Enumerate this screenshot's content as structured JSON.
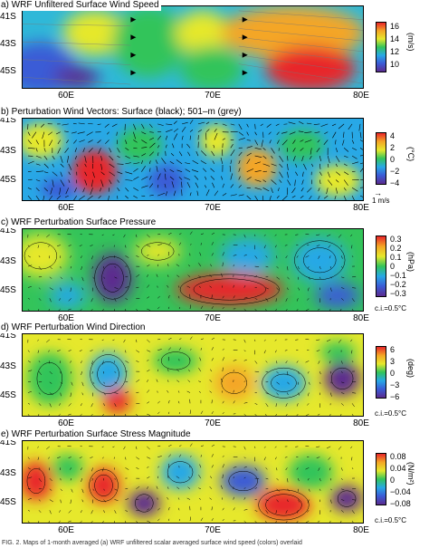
{
  "colormap": [
    "#5b2c8f",
    "#3b5bd6",
    "#28a8e6",
    "#33c45a",
    "#e6e82c",
    "#f4a625",
    "#e8262a"
  ],
  "panels": [
    {
      "title": "a) WRF Unfiltered Surface Wind Speed",
      "y_labels": [
        "41S",
        "43S",
        "45S"
      ],
      "x_labels": [
        "60E",
        "70E",
        "80E"
      ],
      "colorbar_ticks": [
        "16",
        "14",
        "12",
        "10"
      ],
      "unit": "(m/s)",
      "ci_label": ""
    },
    {
      "title": "b) Perturbation Wind Vectors: Surface (black); 501–m (grey)",
      "y_labels": [
        "41S",
        "43S",
        "45S"
      ],
      "x_labels": [
        "60E",
        "70E",
        "80E"
      ],
      "colorbar_ticks": [
        "4",
        "2",
        "0",
        "−2",
        "−4"
      ],
      "unit": "(°C)",
      "ci_label": "",
      "arrow_label": "1 m/s"
    },
    {
      "title": "c) WRF Perturbation Surface Pressure",
      "y_labels": [
        "41S",
        "43S",
        "45S"
      ],
      "x_labels": [
        "60E",
        "70E",
        "80E"
      ],
      "colorbar_ticks": [
        "0.3",
        "0.2",
        "0.1",
        "0",
        "−0.1",
        "−0.2",
        "−0.3"
      ],
      "unit": "(hPa)",
      "ci_label": "c.i.=0.5°C"
    },
    {
      "title": "d) WRF Perturbation Wind Direction",
      "y_labels": [
        "41S",
        "43S",
        "45S"
      ],
      "x_labels": [
        "60E",
        "70E",
        "80E"
      ],
      "colorbar_ticks": [
        "6",
        "3",
        "0",
        "−3",
        "−6"
      ],
      "unit": "(deg)",
      "ci_label": "c.i.=0.5°C"
    },
    {
      "title": "e) WRF Perturbation Surface Stress Magnitude",
      "y_labels": [
        "41S",
        "43S",
        "45S"
      ],
      "x_labels": [
        "60E",
        "70E",
        "80E"
      ],
      "colorbar_ticks": [
        "0.08",
        "0.04",
        "0",
        "−0.04",
        "−0.08"
      ],
      "unit": "(N/m²)",
      "ci_label": "c.i.=0.5°C"
    }
  ],
  "caption": "FIG. 2. Maps of 1-month averaged (a) WRF unfiltered scalar averaged surface wind speed (colors) overlaid"
}
